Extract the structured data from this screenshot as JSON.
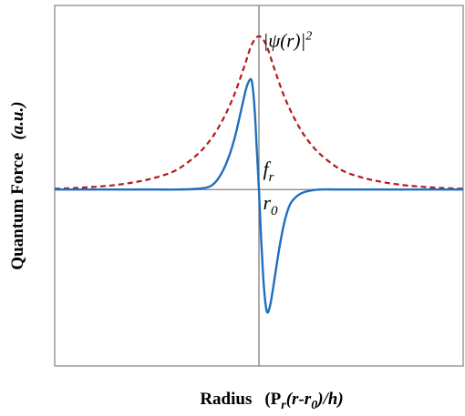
{
  "chart_data": {
    "type": "line",
    "title": "",
    "ylabel": {
      "main": "Quantum Force",
      "unit": "(a.u.)"
    },
    "xlabel": {
      "main": "Radius",
      "expr_open": "(P",
      "expr_sub_r": "r",
      "expr_mid": "(r-r",
      "expr_sub_0": "0",
      "expr_close": ")/h)"
    },
    "xlim": [
      -5,
      5
    ],
    "ylim": [
      -1.15,
      1.2
    ],
    "grid": false,
    "annotations": {
      "psi": {
        "prefix": "|",
        "psi": "ψ",
        "middle": "(r)",
        "suffix": "|",
        "sup": "2",
        "x": 0.1,
        "y": 0.93
      },
      "fr": {
        "base": "f",
        "sub": "r",
        "x": 0.1,
        "y": 0.09
      },
      "r0": {
        "base": "r",
        "sub": "0",
        "x": 0.1,
        "y": -0.13
      }
    },
    "series": [
      {
        "key": "force",
        "color": "#1f6fbf",
        "dash": "none",
        "x": [
          -5,
          -4,
          -3,
          -2.5,
          -2,
          -1.5,
          -1.2,
          -1.0,
          -0.8,
          -0.6,
          -0.4,
          -0.3,
          -0.2,
          -0.15,
          -0.1,
          -0.05,
          0,
          0.05,
          0.1,
          0.15,
          0.2,
          0.25,
          0.3,
          0.4,
          0.5,
          0.6,
          0.7,
          0.8,
          1.0,
          1.2,
          1.5,
          2,
          3,
          4,
          5
        ],
        "y": [
          0,
          0,
          0,
          0,
          0,
          0.005,
          0.02,
          0.07,
          0.17,
          0.33,
          0.56,
          0.67,
          0.72,
          0.66,
          0.5,
          0.25,
          0,
          -0.3,
          -0.55,
          -0.72,
          -0.8,
          -0.78,
          -0.72,
          -0.55,
          -0.38,
          -0.24,
          -0.14,
          -0.08,
          -0.03,
          -0.01,
          0,
          0,
          0,
          0,
          0
        ]
      },
      {
        "key": "density",
        "color": "#b01c1c",
        "dash": "6,4",
        "x": [
          -5,
          -4.5,
          -4,
          -3.5,
          -3,
          -2.5,
          -2,
          -1.5,
          -1.2,
          -1.0,
          -0.8,
          -0.6,
          -0.4,
          -0.3,
          -0.2,
          -0.1,
          0,
          0.1,
          0.2,
          0.3,
          0.4,
          0.6,
          0.8,
          1.0,
          1.2,
          1.5,
          2,
          2.5,
          3,
          3.5,
          4,
          4.5,
          5
        ],
        "y": [
          0.005,
          0.01,
          0.018,
          0.03,
          0.05,
          0.08,
          0.13,
          0.23,
          0.32,
          0.4,
          0.5,
          0.62,
          0.77,
          0.85,
          0.93,
          0.98,
          1.0,
          0.98,
          0.93,
          0.85,
          0.77,
          0.62,
          0.5,
          0.4,
          0.32,
          0.23,
          0.13,
          0.08,
          0.05,
          0.03,
          0.018,
          0.01,
          0.005
        ]
      }
    ]
  }
}
